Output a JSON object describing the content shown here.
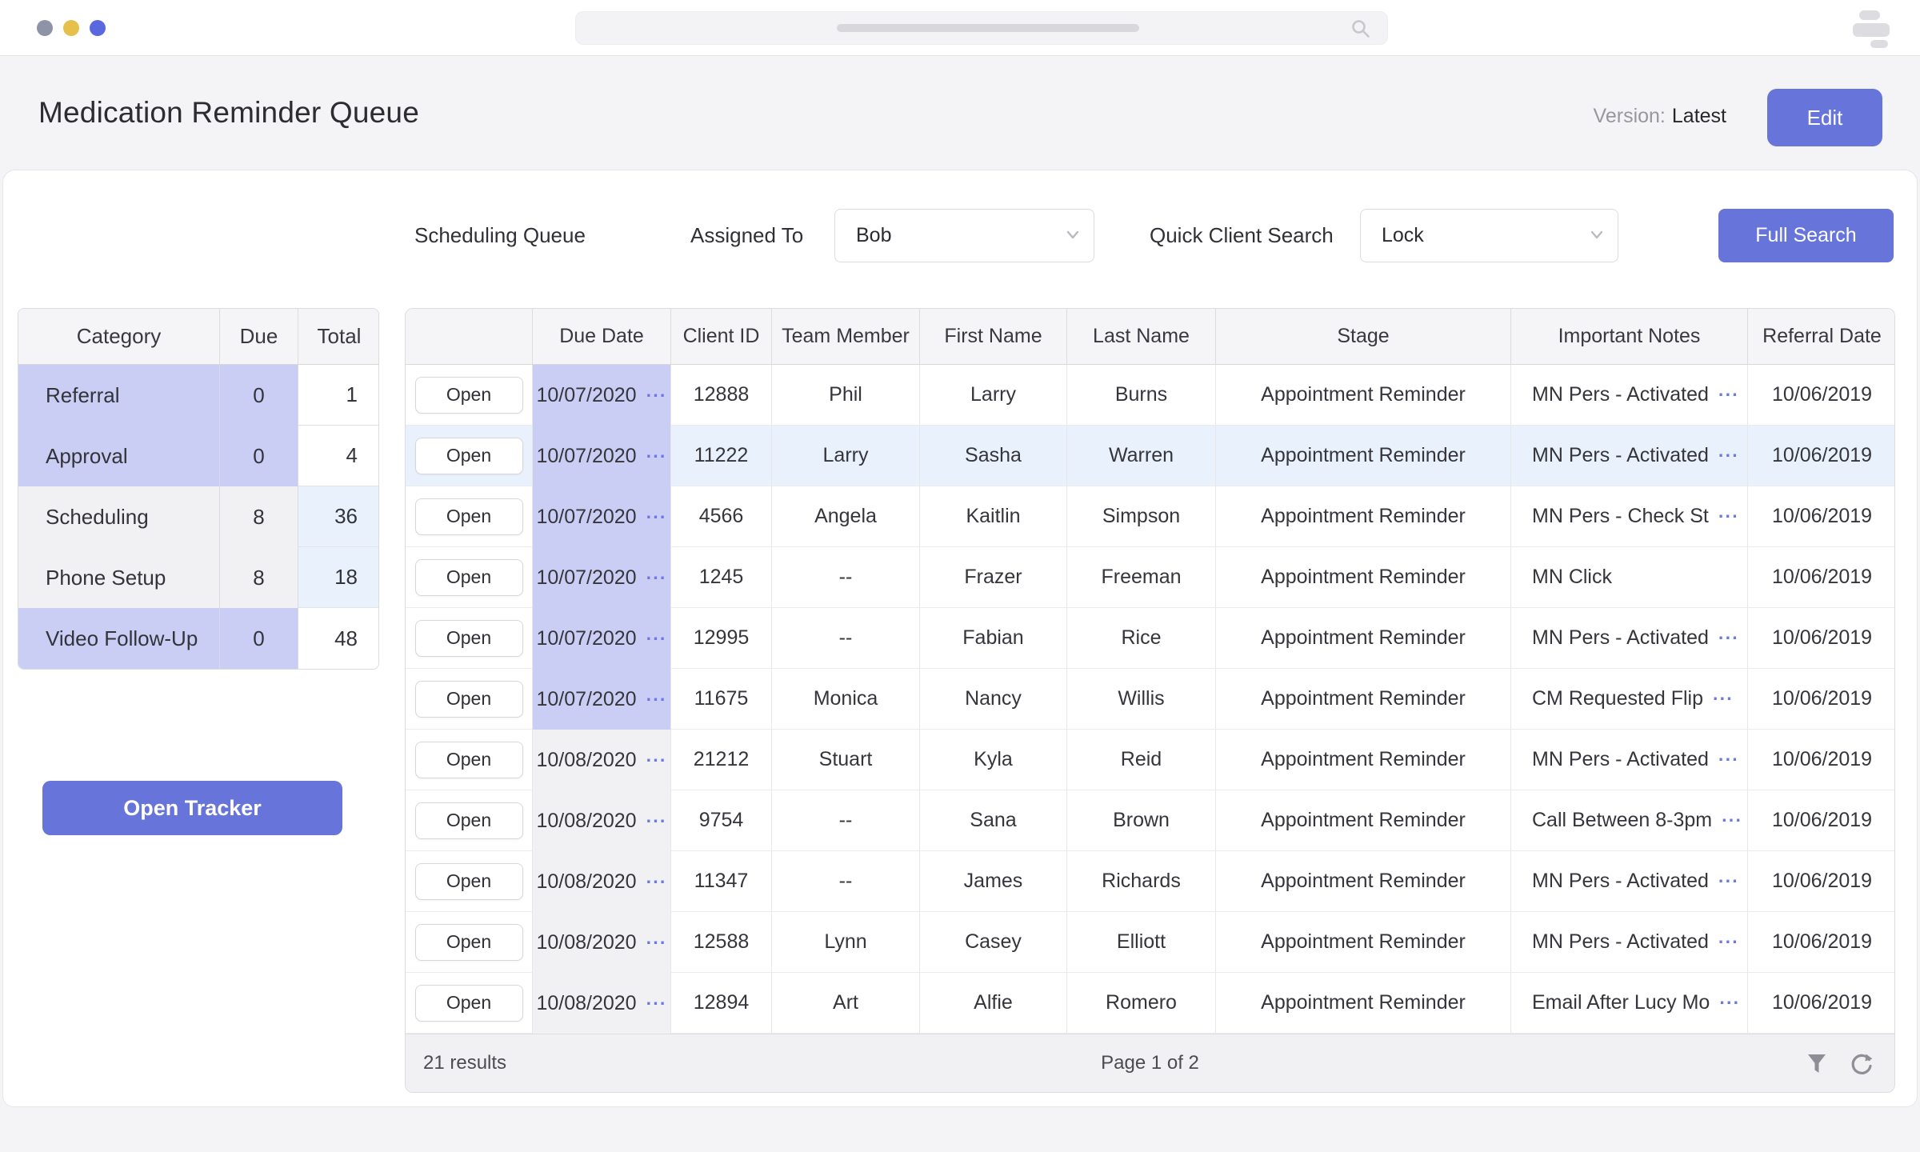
{
  "header": {
    "title": "Medication Reminder Queue",
    "version_label": "Version:",
    "version_value": "Latest",
    "edit_button_label": "Edit"
  },
  "toolbar": {
    "queue_title": "Scheduling Queue",
    "assigned_to_label": "Assigned To",
    "assigned_to_value": "Bob",
    "quick_client_search_label": "Quick Client Search",
    "quick_client_search_value": "Lock",
    "full_search_button_label": "Full Search"
  },
  "category_summary": {
    "headers": [
      "Category",
      "Due",
      "Total"
    ],
    "rows": [
      {
        "category": "Referral",
        "due": "0",
        "total": "1",
        "tint": "purple"
      },
      {
        "category": "Approval",
        "due": "0",
        "total": "4",
        "tint": "purple"
      },
      {
        "category": "Scheduling",
        "due": "8",
        "total": "36",
        "tint": "gray"
      },
      {
        "category": "Phone Setup",
        "due": "8",
        "total": "18",
        "tint": "gray"
      },
      {
        "category": "Video Follow-Up",
        "due": "0",
        "total": "48",
        "tint": "purple"
      }
    ]
  },
  "open_tracker_button_label": "Open Tracker",
  "queue_table": {
    "headers": [
      "",
      "Due Date",
      "Client ID",
      "Team Member",
      "First Name",
      "Last Name",
      "Stage",
      "Important Notes",
      "Referral Date"
    ],
    "open_button_label": "Open",
    "truncation_indicator": "···",
    "rows": [
      {
        "due_date": "10/07/2020",
        "due_tint": "purple",
        "client_id": "12888",
        "team_member": "Phil",
        "first_name": "Larry",
        "last_name": "Burns",
        "stage": "Appointment Reminder",
        "notes": "MN Pers - Activated",
        "notes_truncated": true,
        "referral_date": "10/06/2019",
        "highlighted": false
      },
      {
        "due_date": "10/07/2020",
        "due_tint": "purple",
        "client_id": "11222",
        "team_member": "Larry",
        "first_name": "Sasha",
        "last_name": "Warren",
        "stage": "Appointment Reminder",
        "notes": "MN Pers - Activated",
        "notes_truncated": true,
        "referral_date": "10/06/2019",
        "highlighted": true
      },
      {
        "due_date": "10/07/2020",
        "due_tint": "purple",
        "client_id": "4566",
        "team_member": "Angela",
        "first_name": "Kaitlin",
        "last_name": "Simpson",
        "stage": "Appointment Reminder",
        "notes": "MN Pers - Check St",
        "notes_truncated": true,
        "referral_date": "10/06/2019",
        "highlighted": false
      },
      {
        "due_date": "10/07/2020",
        "due_tint": "purple",
        "client_id": "1245",
        "team_member": "--",
        "first_name": "Frazer",
        "last_name": "Freeman",
        "stage": "Appointment Reminder",
        "notes": "MN Click",
        "notes_truncated": false,
        "referral_date": "10/06/2019",
        "highlighted": false
      },
      {
        "due_date": "10/07/2020",
        "due_tint": "purple",
        "client_id": "12995",
        "team_member": "--",
        "first_name": "Fabian",
        "last_name": "Rice",
        "stage": "Appointment Reminder",
        "notes": "MN Pers - Activated",
        "notes_truncated": true,
        "referral_date": "10/06/2019",
        "highlighted": false
      },
      {
        "due_date": "10/07/2020",
        "due_tint": "purple",
        "client_id": "11675",
        "team_member": "Monica",
        "first_name": "Nancy",
        "last_name": "Willis",
        "stage": "Appointment Reminder",
        "notes": "CM Requested Flip",
        "notes_truncated": true,
        "referral_date": "10/06/2019",
        "highlighted": false
      },
      {
        "due_date": "10/08/2020",
        "due_tint": "gray",
        "client_id": "21212",
        "team_member": "Stuart",
        "first_name": "Kyla",
        "last_name": "Reid",
        "stage": "Appointment Reminder",
        "notes": "MN Pers - Activated",
        "notes_truncated": true,
        "referral_date": "10/06/2019",
        "highlighted": false
      },
      {
        "due_date": "10/08/2020",
        "due_tint": "gray",
        "client_id": "9754",
        "team_member": "--",
        "first_name": "Sana",
        "last_name": "Brown",
        "stage": "Appointment Reminder",
        "notes": "Call Between 8-3pm",
        "notes_truncated": true,
        "referral_date": "10/06/2019",
        "highlighted": false
      },
      {
        "due_date": "10/08/2020",
        "due_tint": "gray",
        "client_id": "11347",
        "team_member": "--",
        "first_name": "James",
        "last_name": "Richards",
        "stage": "Appointment Reminder",
        "notes": "MN Pers - Activated",
        "notes_truncated": true,
        "referral_date": "10/06/2019",
        "highlighted": false
      },
      {
        "due_date": "10/08/2020",
        "due_tint": "gray",
        "client_id": "12588",
        "team_member": "Lynn",
        "first_name": "Casey",
        "last_name": "Elliott",
        "stage": "Appointment Reminder",
        "notes": "MN Pers - Activated",
        "notes_truncated": true,
        "referral_date": "10/06/2019",
        "highlighted": false
      },
      {
        "due_date": "10/08/2020",
        "due_tint": "gray",
        "client_id": "12894",
        "team_member": "Art",
        "first_name": "Alfie",
        "last_name": "Romero",
        "stage": "Appointment Reminder",
        "notes": "Email After Lucy Mo",
        "notes_truncated": true,
        "referral_date": "10/06/2019",
        "highlighted": false
      }
    ],
    "footer": {
      "results_text": "21 results",
      "page_text": "Page 1 of 2"
    }
  },
  "colors": {
    "accent": "#6774d9",
    "purple_cell": "#cbcef4",
    "blue_cell": "#e9f2fc",
    "gray_cell": "#f1f1f3",
    "ellipsis": "#6b79e0",
    "window_dots": [
      "#8f93a8",
      "#e7c04b",
      "#5a68df"
    ]
  }
}
